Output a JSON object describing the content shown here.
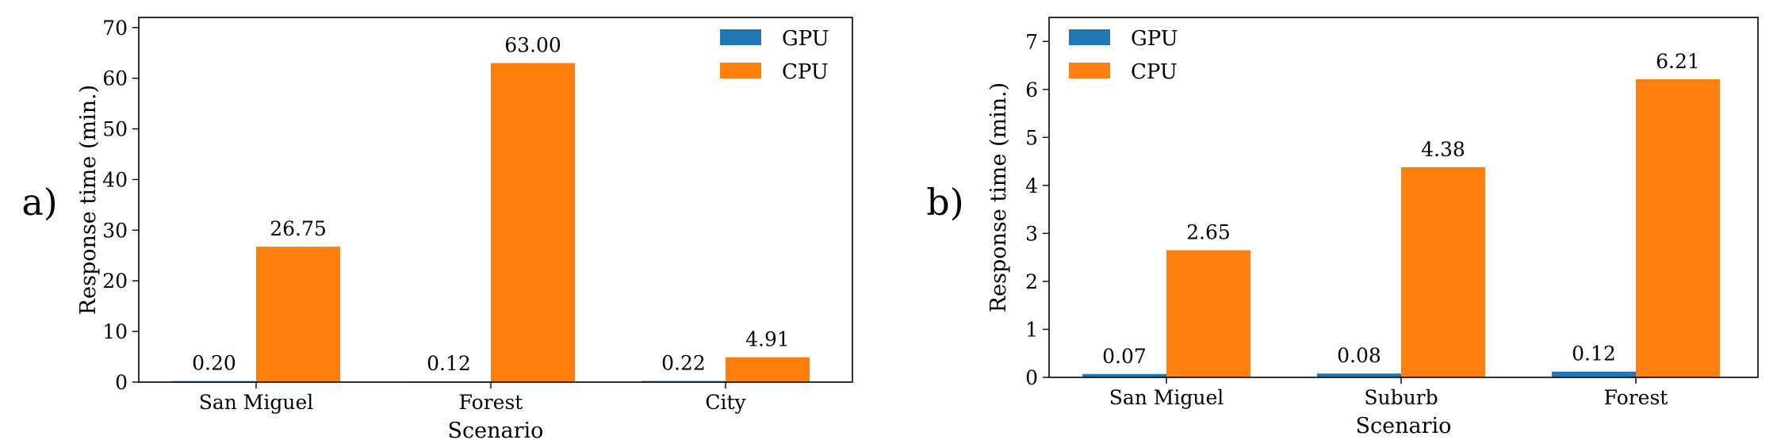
{
  "chart_data": [
    {
      "panel": "a)",
      "type": "bar",
      "categories": [
        "San Miguel",
        "Forest",
        "City"
      ],
      "series": [
        {
          "name": "GPU",
          "values": [
            0.2,
            0.12,
            0.22
          ],
          "labels": [
            "0.20",
            "0.12",
            "0.22"
          ],
          "color": "#1f77b4"
        },
        {
          "name": "CPU",
          "values": [
            26.75,
            63.0,
            4.91
          ],
          "labels": [
            "26.75",
            "63.00",
            "4.91"
          ],
          "color": "#ff7f0e"
        }
      ],
      "xlabel": "Scenario",
      "ylabel": "Response time (min.)",
      "ylim": [
        0,
        72
      ],
      "yticks": [
        0,
        10,
        20,
        30,
        40,
        50,
        60,
        70
      ],
      "legend": "top-right",
      "grid": false
    },
    {
      "panel": "b)",
      "type": "bar",
      "categories": [
        "San Miguel",
        "Suburb",
        "Forest"
      ],
      "series": [
        {
          "name": "GPU",
          "values": [
            0.07,
            0.08,
            0.12
          ],
          "labels": [
            "0.07",
            "0.08",
            "0.12"
          ],
          "color": "#1f77b4"
        },
        {
          "name": "CPU",
          "values": [
            2.65,
            4.38,
            6.21
          ],
          "labels": [
            "2.65",
            "4.38",
            "6.21"
          ],
          "color": "#ff7f0e"
        }
      ],
      "xlabel": "Scenario",
      "ylabel": "Response time (min.)",
      "ylim": [
        0,
        7.5
      ],
      "yticks": [
        0,
        1,
        2,
        3,
        4,
        5,
        6,
        7
      ],
      "legend": "top-left",
      "grid": false
    }
  ]
}
